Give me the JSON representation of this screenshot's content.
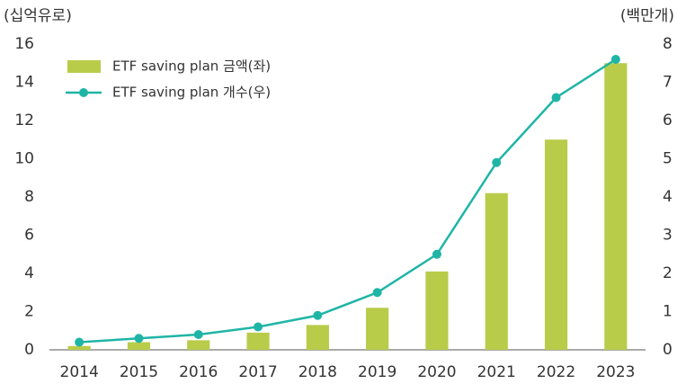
{
  "chart_data": {
    "type": "bar",
    "y_label": "(십억유로)",
    "y2_label": "(백만개)",
    "categories": [
      "2014",
      "2015",
      "2016",
      "2017",
      "2018",
      "2019",
      "2020",
      "2021",
      "2022",
      "2023"
    ],
    "series": [
      {
        "name": "ETF saving plan 금액(좌)",
        "type": "bar",
        "color": "#b9cc4a",
        "values": [
          0.2,
          0.4,
          0.5,
          0.9,
          1.3,
          2.2,
          4.1,
          8.2,
          11.0,
          15.0
        ]
      },
      {
        "name": "ETF saving plan 개수(우)",
        "type": "line",
        "axis": "y2",
        "color": "#1fb5a6",
        "values": [
          0.2,
          0.3,
          0.4,
          0.6,
          0.9,
          1.5,
          2.5,
          4.9,
          6.6,
          7.6
        ]
      }
    ],
    "ylim": [
      0,
      16
    ],
    "yticks": [
      0,
      2,
      4,
      6,
      8,
      10,
      12,
      14,
      16
    ],
    "y2lim": [
      0,
      8
    ],
    "y2ticks": [
      0,
      1,
      2,
      3,
      4,
      5,
      6,
      7,
      8
    ],
    "legend": "top-left"
  }
}
